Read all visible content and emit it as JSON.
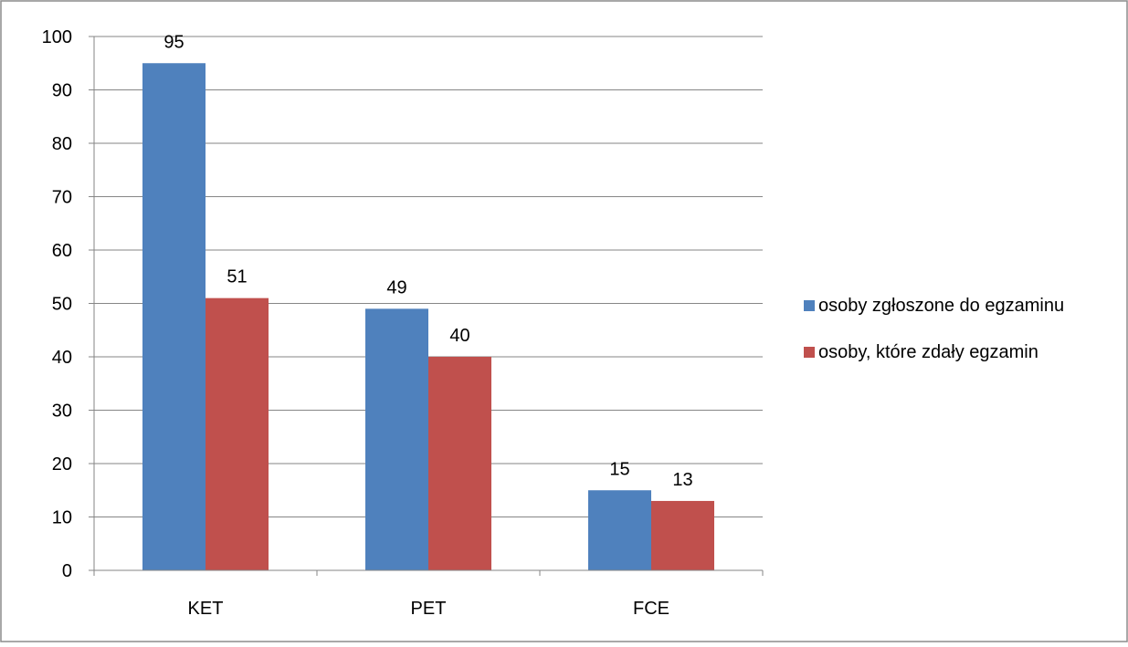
{
  "chart_data": {
    "type": "bar",
    "title": "",
    "xlabel": "",
    "ylabel": "",
    "categories": [
      "KET",
      "PET",
      "FCE"
    ],
    "series": [
      {
        "name": "osoby zgłoszone do egzaminu",
        "values": [
          95,
          49,
          15
        ],
        "color": "#4f81bd"
      },
      {
        "name": "osoby, które zdały egzamin",
        "values": [
          51,
          40,
          13
        ],
        "color": "#c0504d"
      }
    ],
    "ylim": [
      0,
      100
    ],
    "yticks": [
      0,
      10,
      20,
      30,
      40,
      50,
      60,
      70,
      80,
      90,
      100
    ],
    "grid": true,
    "legend_position": "right",
    "data_labels": true
  }
}
